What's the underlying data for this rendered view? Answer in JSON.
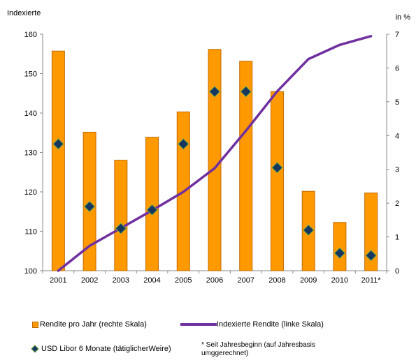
{
  "chart_data": {
    "type": "bar",
    "left_axis_title": "Indexierte",
    "right_axis_title": "in %",
    "categories": [
      "2001",
      "2002",
      "2003",
      "2004",
      "2005",
      "2006",
      "2007",
      "2008",
      "2009",
      "2010",
      "2011*"
    ],
    "left_axis": {
      "min": 100,
      "max": 160,
      "ticks": [
        "100",
        "110",
        "120",
        "130",
        "140",
        "150",
        "160"
      ]
    },
    "right_axis": {
      "min": 0,
      "max": 7,
      "ticks": [
        "0",
        "1",
        "2",
        "3",
        "4",
        "5",
        "6",
        "7"
      ]
    },
    "grid": false,
    "series": [
      {
        "name": "Rendite pro Jahr (rechte Skala)",
        "kind": "bar",
        "axis": "right",
        "color": "#ff9900",
        "values": [
          6.5,
          4.1,
          3.27,
          3.95,
          4.7,
          6.55,
          6.2,
          5.3,
          2.35,
          1.43,
          2.3
        ]
      },
      {
        "name": "Indexierte Rendite (linke Skala)",
        "kind": "line",
        "axis": "left",
        "color": "#7030a0",
        "values": [
          100,
          106.3,
          110.8,
          115.3,
          120.0,
          126.0,
          135.5,
          145.5,
          153.7,
          157.3,
          159.5
        ]
      },
      {
        "name": "USD Libor 6 Monate (tätiglicherWeire)",
        "kind": "marker",
        "axis": "right",
        "color": "#17375e",
        "values": [
          3.75,
          1.9,
          1.25,
          1.8,
          3.75,
          5.3,
          5.3,
          3.05,
          1.2,
          0.52,
          0.45
        ]
      }
    ],
    "footnote": "* Seit Jahresbeginn (auf Jahresbasis umggerechnet)"
  }
}
